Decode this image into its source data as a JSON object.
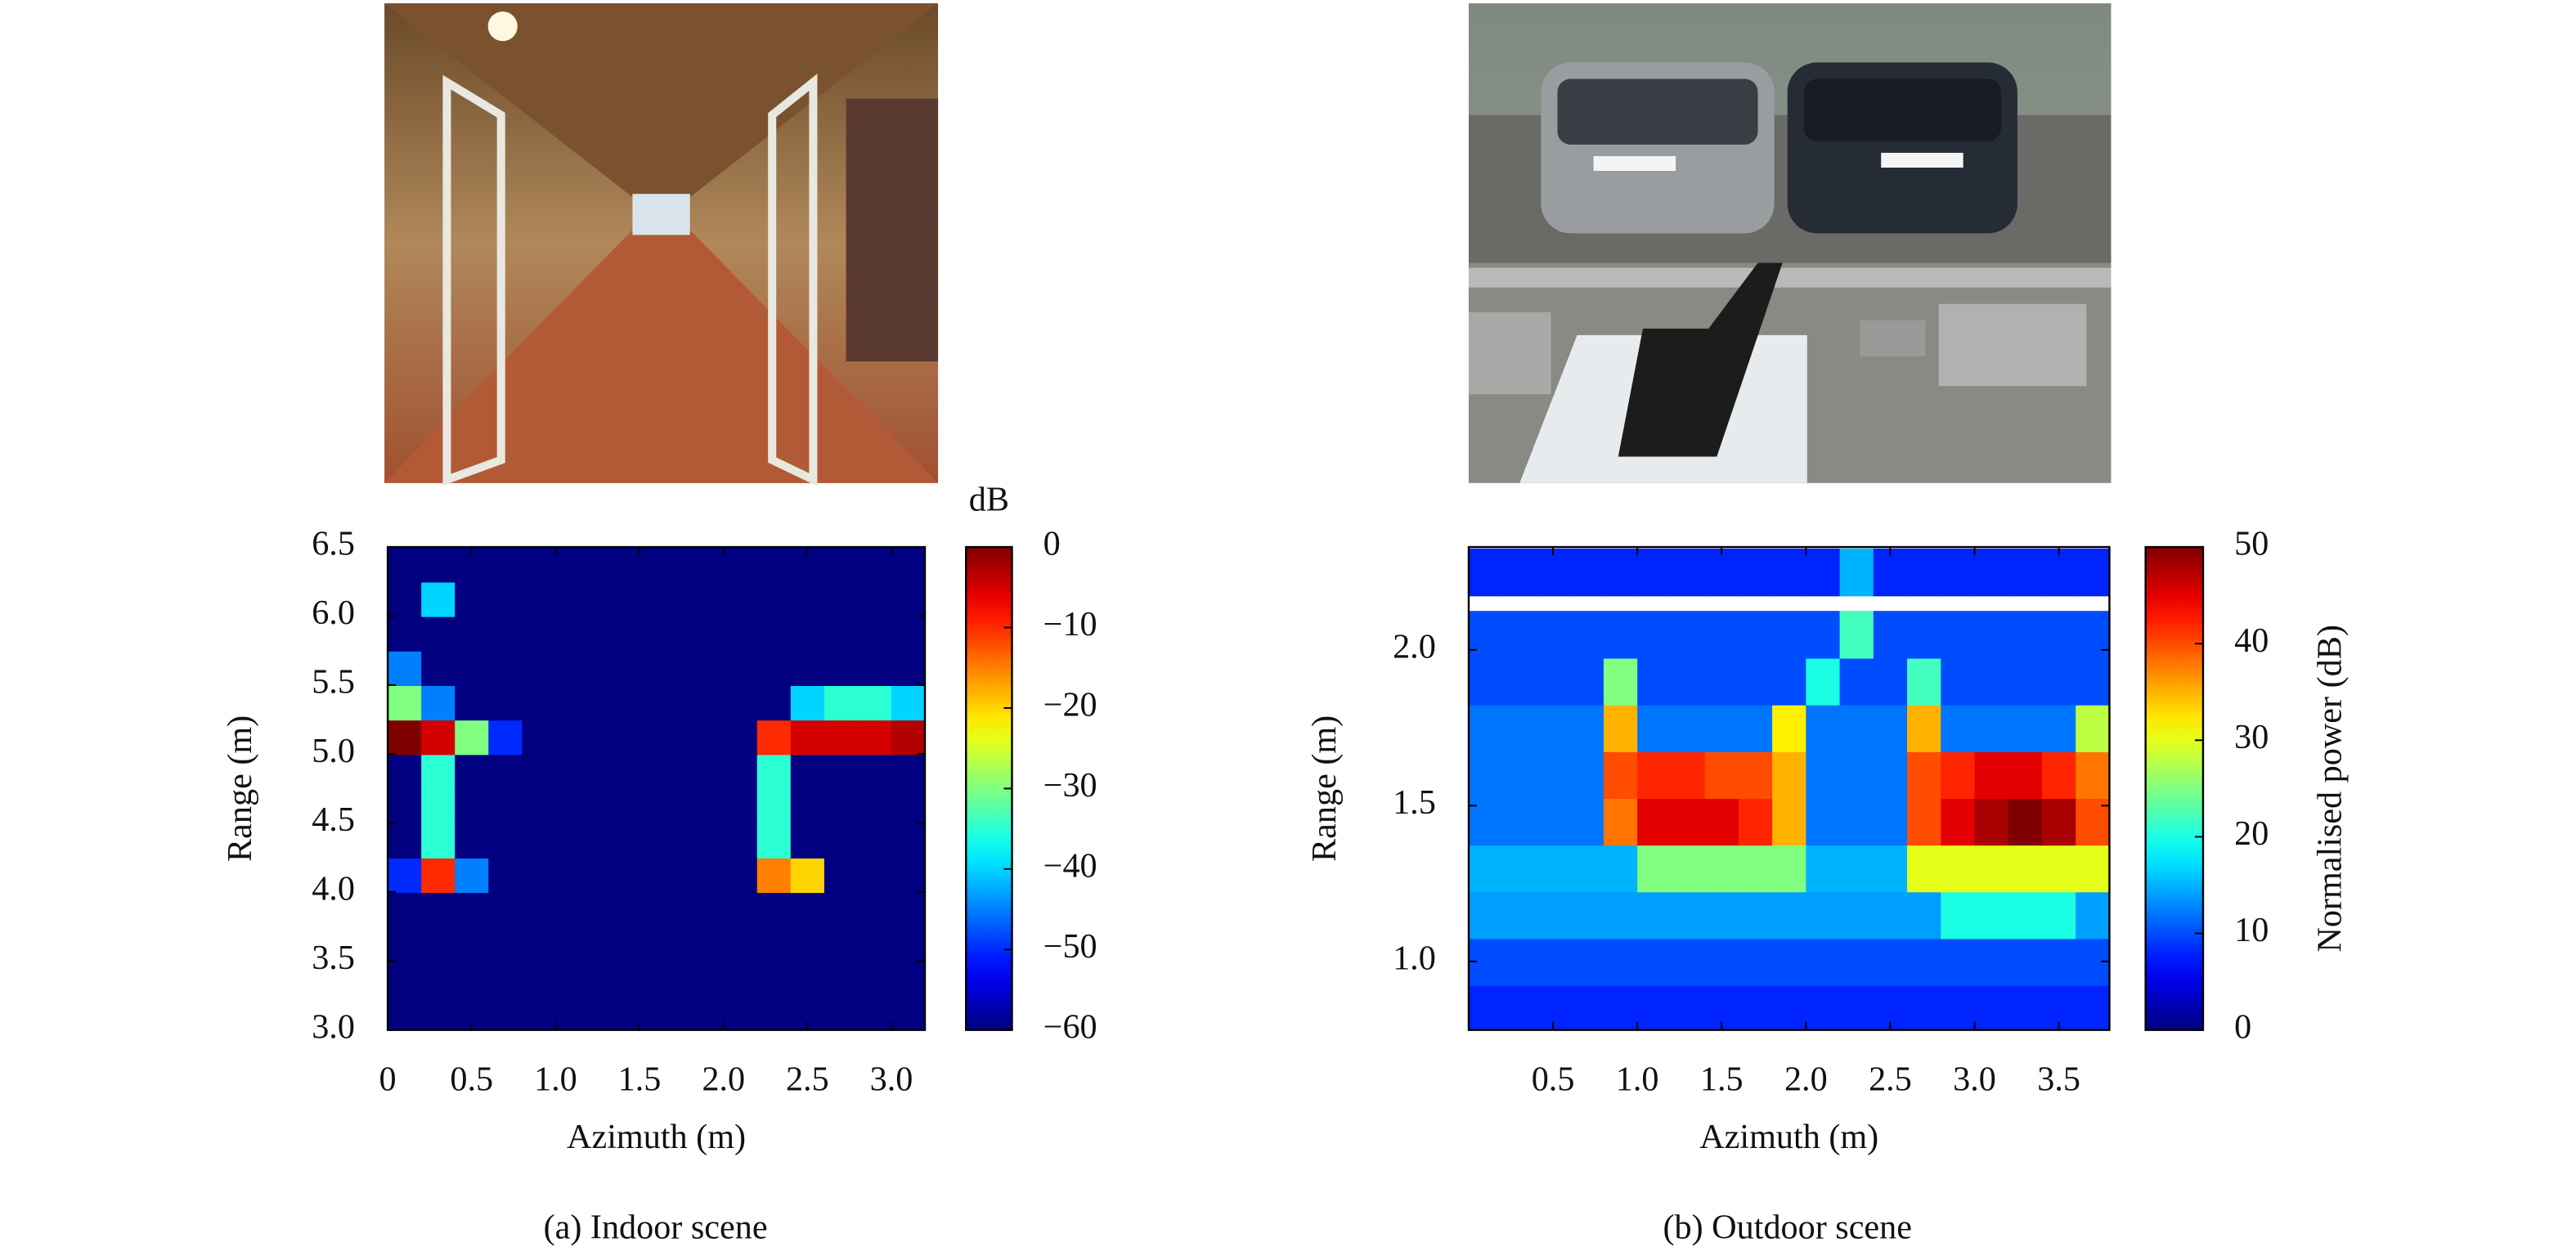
{
  "chart_data": [
    {
      "type": "heatmap",
      "caption": "(a) Indoor scene",
      "xlabel": "Azimuth (m)",
      "ylabel": "Range (m)",
      "colorbar_label": "dB",
      "colormap": "jet",
      "xlim": [
        0,
        3.2
      ],
      "ylim": [
        3.0,
        6.5
      ],
      "zlim": [
        -60,
        0
      ],
      "xticks": [
        0,
        0.5,
        {
          "value": 1,
          "label": "1.0"
        },
        1.5,
        {
          "value": 2,
          "label": "2.0"
        },
        2.5,
        {
          "value": 3,
          "label": "3.0"
        }
      ],
      "yticks": [
        {
          "value": 3,
          "label": "3.0"
        },
        3.5,
        {
          "value": 4,
          "label": "4.0"
        },
        4.5,
        {
          "value": 5,
          "label": "5.0"
        },
        5.5,
        {
          "value": 6,
          "label": "6.0"
        },
        6.5
      ],
      "zticks": [
        {
          "value": -60,
          "label": "−60"
        },
        {
          "value": -50,
          "label": "−50"
        },
        {
          "value": -40,
          "label": "−40"
        },
        {
          "value": -30,
          "label": "−30"
        },
        {
          "value": -20,
          "label": "−20"
        },
        {
          "value": -10,
          "label": "−10"
        },
        0
      ],
      "x": [
        0.1,
        0.3,
        0.5,
        0.7,
        0.9,
        1.1,
        1.3,
        1.5,
        1.7,
        1.9,
        2.1,
        2.3,
        2.5,
        2.7,
        2.9,
        3.1
      ],
      "y": [
        3.125,
        3.375,
        3.625,
        3.875,
        4.125,
        4.375,
        4.625,
        4.875,
        5.125,
        5.375,
        5.625,
        5.875,
        6.125,
        6.375
      ],
      "z": [
        [
          -60,
          -60,
          -60,
          -60,
          -60,
          -60,
          -60,
          -60,
          -60,
          -60,
          -60,
          -60,
          -60,
          -60,
          -60,
          -60
        ],
        [
          -60,
          -60,
          -60,
          -60,
          -60,
          -60,
          -60,
          -60,
          -60,
          -60,
          -60,
          -60,
          -60,
          -60,
          -60,
          -60
        ],
        [
          -60,
          -60,
          -60,
          -60,
          -60,
          -60,
          -60,
          -60,
          -60,
          -60,
          -60,
          -60,
          -60,
          -60,
          -60,
          -60
        ],
        [
          -60,
          -60,
          -60,
          -60,
          -60,
          -60,
          -60,
          -60,
          -60,
          -60,
          -60,
          -60,
          -60,
          -60,
          -60,
          -60
        ],
        [
          -50,
          -10,
          -45,
          -60,
          -60,
          -60,
          -60,
          -60,
          -60,
          -60,
          -60,
          -15,
          -20,
          -60,
          -60,
          -60
        ],
        [
          -60,
          -35,
          -60,
          -60,
          -60,
          -60,
          -60,
          -60,
          -60,
          -60,
          -60,
          -35,
          -60,
          -60,
          -60,
          -60
        ],
        [
          -60,
          -35,
          -60,
          -60,
          -60,
          -60,
          -60,
          -60,
          -60,
          -60,
          -60,
          -35,
          -60,
          -60,
          -60,
          -60
        ],
        [
          -60,
          -35,
          -60,
          -60,
          -60,
          -60,
          -60,
          -60,
          -60,
          -60,
          -60,
          -35,
          -60,
          -60,
          -60,
          -60
        ],
        [
          0,
          -5,
          -30,
          -50,
          -60,
          -60,
          -60,
          -60,
          -60,
          -60,
          -60,
          -10,
          -5,
          -5,
          -5,
          -3
        ],
        [
          -30,
          -45,
          -60,
          -60,
          -60,
          -60,
          -60,
          -60,
          -60,
          -60,
          -60,
          -60,
          -40,
          -35,
          -35,
          -40
        ],
        [
          -45,
          -60,
          -60,
          -60,
          -60,
          -60,
          -60,
          -60,
          -60,
          -60,
          -60,
          -60,
          -60,
          -60,
          -60,
          -60
        ],
        [
          -60,
          -60,
          -60,
          -60,
          -60,
          -60,
          -60,
          -60,
          -60,
          -60,
          -60,
          -60,
          -60,
          -60,
          -60,
          -60
        ],
        [
          -60,
          -40,
          -60,
          -60,
          -60,
          -60,
          -60,
          -60,
          -60,
          -60,
          -60,
          -60,
          -60,
          -60,
          -60,
          -60
        ],
        [
          -60,
          -60,
          -60,
          -60,
          -60,
          -60,
          -60,
          -60,
          -60,
          -60,
          -60,
          -60,
          -60,
          -60,
          -60,
          -60
        ]
      ]
    },
    {
      "type": "heatmap",
      "caption": "(b) Outdoor scene",
      "xlabel": "Azimuth (m)",
      "ylabel": "Range (m)",
      "colorbar_label": "Normalised power (dB)",
      "colormap": "jet",
      "xlim": [
        0,
        3.8
      ],
      "ylim": [
        0.78,
        2.33
      ],
      "zlim": [
        0,
        50
      ],
      "xticks": [
        0.5,
        {
          "value": 1,
          "label": "1.0"
        },
        1.5,
        {
          "value": 2,
          "label": "2.0"
        },
        2.5,
        {
          "value": 3,
          "label": "3.0"
        },
        3.5
      ],
      "yticks": [
        {
          "value": 1,
          "label": "1.0"
        },
        1.5,
        {
          "value": 2,
          "label": "2.0"
        }
      ],
      "zticks": [
        0,
        10,
        20,
        30,
        40,
        50
      ],
      "x": [
        0.1,
        0.3,
        0.5,
        0.7,
        0.9,
        1.1,
        1.3,
        1.5,
        1.7,
        1.9,
        2.1,
        2.3,
        2.5,
        2.7,
        2.9,
        3.1,
        3.3,
        3.5,
        3.7
      ],
      "y": [
        0.85,
        1.0,
        1.15,
        1.3,
        1.45,
        1.6,
        1.75,
        1.9,
        2.05,
        2.25
      ],
      "z": [
        [
          8,
          8,
          8,
          8,
          8,
          8,
          8,
          8,
          8,
          8,
          8,
          8,
          8,
          8,
          8,
          8,
          8,
          8,
          8
        ],
        [
          10,
          10,
          10,
          10,
          10,
          10,
          10,
          10,
          10,
          10,
          10,
          10,
          10,
          10,
          10,
          10,
          10,
          10,
          10
        ],
        [
          14,
          14,
          14,
          14,
          14,
          14,
          14,
          14,
          14,
          14,
          14,
          14,
          14,
          14,
          20,
          20,
          20,
          20,
          14
        ],
        [
          15,
          15,
          15,
          15,
          15,
          25,
          25,
          25,
          25,
          25,
          15,
          15,
          15,
          30,
          30,
          30,
          30,
          30,
          30
        ],
        [
          12,
          12,
          12,
          12,
          38,
          45,
          45,
          45,
          42,
          35,
          12,
          12,
          12,
          40,
          45,
          48,
          50,
          48,
          40
        ],
        [
          12,
          12,
          12,
          12,
          40,
          42,
          42,
          40,
          40,
          35,
          12,
          12,
          12,
          40,
          42,
          45,
          45,
          42,
          38
        ],
        [
          12,
          12,
          12,
          12,
          35,
          12,
          12,
          12,
          12,
          32,
          12,
          12,
          12,
          35,
          12,
          12,
          12,
          12,
          28
        ],
        [
          10,
          10,
          10,
          10,
          25,
          10,
          10,
          10,
          10,
          10,
          20,
          10,
          10,
          22,
          10,
          10,
          10,
          10,
          10
        ],
        [
          10,
          10,
          10,
          10,
          10,
          10,
          10,
          10,
          10,
          10,
          10,
          22,
          10,
          10,
          10,
          10,
          10,
          10,
          10
        ],
        [
          8,
          8,
          8,
          8,
          8,
          8,
          8,
          8,
          8,
          8,
          8,
          15,
          8,
          8,
          8,
          8,
          8,
          8,
          8
        ]
      ]
    }
  ]
}
